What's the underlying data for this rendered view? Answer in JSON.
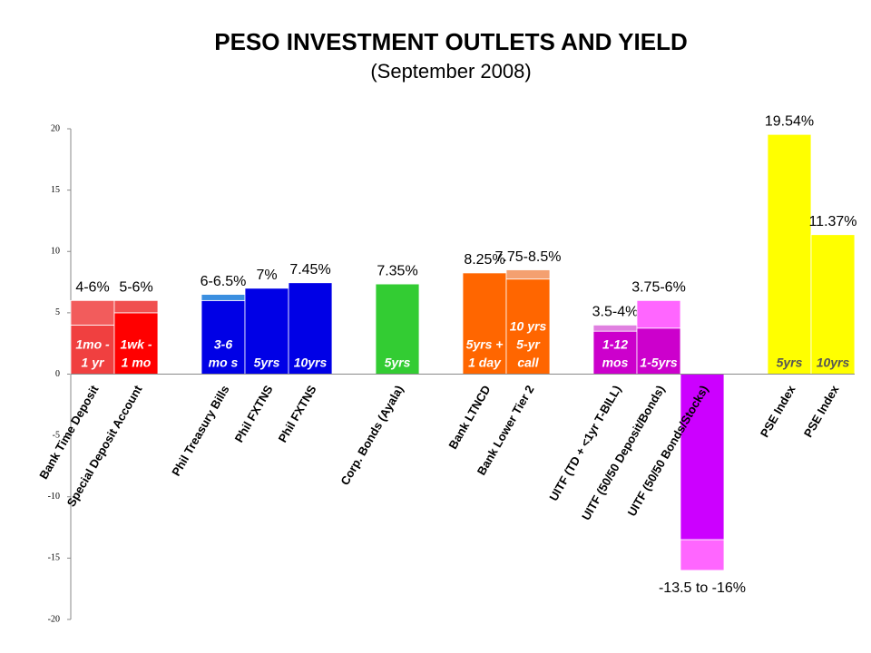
{
  "chart_data": {
    "type": "range-bar",
    "title": "PESO INVESTMENT OUTLETS AND YIELD",
    "subtitle": "(September 2008)",
    "categories": [
      "Bank Time Deposit",
      "Special Deposit Account",
      null,
      "Phil Treasury Bills",
      "Phil FXTNS",
      "Phil FXTNS",
      null,
      "Corp. Bonds (Ayala)",
      null,
      "Bank LTNCD",
      "Bank Lower Tier 2",
      null,
      "UITF (TD + <1yr T-BILL)",
      "UITF (50/50 Deposit/Bonds)",
      "UITF (50/50 Bonds/Stocks)",
      null,
      "PSE Index",
      "PSE Index"
    ],
    "series": [
      {
        "values": [
          4,
          5,
          null,
          6,
          7,
          7.45,
          null,
          7.35,
          null,
          8.25,
          7.75,
          null,
          3.5,
          3.75,
          -13.5,
          null,
          19.54,
          11.37
        ],
        "value_labels": [
          "4-6%",
          "5-6%",
          null,
          "6-6.5%",
          "7%",
          "7.45%",
          null,
          "7.35%",
          null,
          "8.25%",
          "7.75-8.5%",
          null,
          "3.5-4%",
          "3.75-6%",
          "-13.5 to -16%",
          null,
          "19.54%",
          "11.37%"
        ],
        "colors": [
          "#f04040",
          "#ff0000",
          null,
          "#0000e6",
          "#0000e6",
          "#0000e6",
          null,
          "#33cc33",
          null,
          "#ff6600",
          "#ff6600",
          null,
          "#cc00cc",
          "#cc00cc",
          "#cc00ff",
          null,
          "#ffff00",
          "#ffff00"
        ]
      },
      {
        "values": [
          2,
          1,
          null,
          0.5,
          null,
          null,
          null,
          null,
          null,
          null,
          0.75,
          null,
          0.5,
          2.25,
          -2.5,
          null,
          null,
          null
        ],
        "colors": [
          "#f25c5c",
          "#f05050",
          null,
          "#3b8fe0",
          null,
          null,
          null,
          null,
          null,
          null,
          "#f4a070",
          null,
          "#e080e0",
          "#ff66ff",
          "#ff66ff",
          null,
          null,
          null
        ]
      }
    ],
    "terms": [
      [
        "1mo -",
        "1 yr"
      ],
      [
        "1wk -",
        "1 mo"
      ],
      null,
      [
        "3-6",
        "mo s"
      ],
      [
        "5yrs"
      ],
      [
        "10yrs"
      ],
      null,
      [
        "5yrs"
      ],
      null,
      [
        "5yrs +",
        "1 day"
      ],
      [
        "10 yrs",
        "5-yr",
        "call"
      ],
      null,
      [
        "1-12",
        "mos"
      ],
      [
        "1-5yrs"
      ],
      null,
      null,
      [
        "5yrs"
      ],
      [
        "10yrs"
      ]
    ],
    "ylim": [
      -20,
      20
    ],
    "yticks": [
      -20,
      -15,
      -10,
      -5,
      0,
      5,
      10,
      15,
      20
    ],
    "grid": false
  }
}
